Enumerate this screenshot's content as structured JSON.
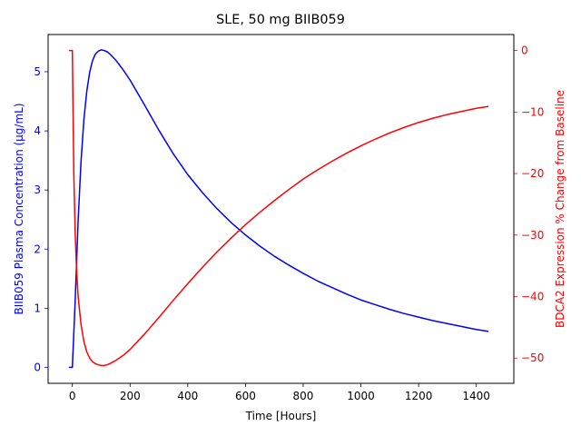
{
  "chart_data": {
    "type": "line",
    "title": "SLE, 50 mg BIIB059",
    "xlabel": "Time [Hours]",
    "ylabel_left": "BIIB059 Plasma Concentration (µg/mL)",
    "ylabel_right": "BDCA2 Expression % Change from Baseline",
    "xlim": [
      -84,
      1530
    ],
    "ylim_left": [
      -0.27,
      5.63
    ],
    "ylim_right": [
      -54.1,
      2.6
    ],
    "x_ticks": [
      0,
      200,
      400,
      600,
      800,
      1000,
      1200,
      1400
    ],
    "y_left_ticks": [
      0,
      1,
      2,
      3,
      4,
      5
    ],
    "y_right_ticks": [
      0,
      -10,
      -20,
      -30,
      -40,
      -50
    ],
    "grid": false,
    "left_axis_color": "#0000ff",
    "right_axis_color": "#ff0000",
    "series": [
      {
        "axis": "left",
        "color": "#0000ff",
        "x": [
          -10,
          0,
          10,
          20,
          30,
          40,
          50,
          60,
          70,
          80,
          90,
          100,
          110,
          120,
          130,
          150,
          175,
          200,
          250,
          300,
          350,
          400,
          450,
          500,
          550,
          600,
          650,
          700,
          750,
          800,
          850,
          900,
          950,
          1000,
          1050,
          1100,
          1150,
          1200,
          1250,
          1300,
          1350,
          1400,
          1440
        ],
        "y": [
          0,
          0,
          1.15,
          2.48,
          3.48,
          4.19,
          4.67,
          4.99,
          5.19,
          5.3,
          5.35,
          5.37,
          5.36,
          5.34,
          5.3,
          5.2,
          5.04,
          4.86,
          4.44,
          4.01,
          3.61,
          3.26,
          2.96,
          2.69,
          2.45,
          2.24,
          2.05,
          1.88,
          1.73,
          1.59,
          1.46,
          1.35,
          1.24,
          1.14,
          1.06,
          0.98,
          0.91,
          0.85,
          0.79,
          0.74,
          0.69,
          0.64,
          0.61
        ]
      },
      {
        "axis": "right",
        "color": "#ff0000",
        "x": [
          -10,
          0,
          5,
          10,
          15,
          20,
          30,
          40,
          50,
          60,
          70,
          80,
          90,
          100,
          110,
          120,
          130,
          150,
          175,
          200,
          250,
          300,
          350,
          400,
          450,
          500,
          550,
          600,
          650,
          700,
          750,
          800,
          850,
          900,
          950,
          1000,
          1050,
          1100,
          1150,
          1200,
          1250,
          1300,
          1350,
          1400,
          1440
        ],
        "y": [
          0,
          0,
          -20,
          -30,
          -36,
          -40,
          -44.5,
          -47.3,
          -49,
          -50,
          -50.6,
          -50.9,
          -51.1,
          -51.2,
          -51.2,
          -51.1,
          -50.9,
          -50.4,
          -49.6,
          -48.6,
          -46.1,
          -43.4,
          -40.6,
          -37.9,
          -35.3,
          -32.8,
          -30.5,
          -28.3,
          -26.3,
          -24.4,
          -22.6,
          -20.9,
          -19.4,
          -18,
          -16.7,
          -15.5,
          -14.4,
          -13.4,
          -12.5,
          -11.7,
          -11,
          -10.4,
          -9.9,
          -9.4,
          -9.1
        ]
      }
    ]
  }
}
